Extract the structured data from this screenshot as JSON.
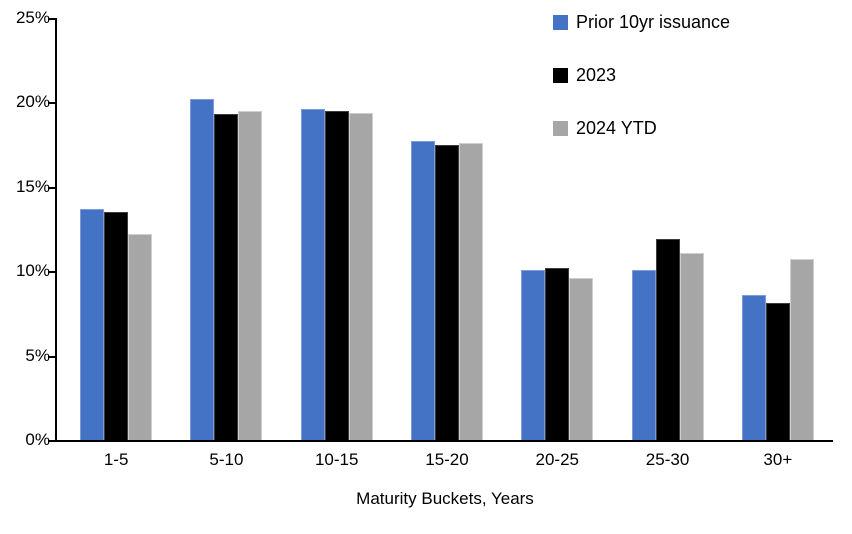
{
  "chart_data": {
    "type": "bar",
    "title": "",
    "categories": [
      "1-5",
      "5-10",
      "10-15",
      "15-20",
      "20-25",
      "25-30",
      "30+"
    ],
    "series": [
      {
        "name": "Prior 10yr issuance",
        "color": "#4472C4",
        "values": [
          13.7,
          20.2,
          19.6,
          17.7,
          10.1,
          10.1,
          8.6
        ]
      },
      {
        "name": "2023",
        "color": "#000000",
        "values": [
          13.5,
          19.3,
          19.5,
          17.5,
          10.2,
          11.9,
          8.1
        ]
      },
      {
        "name": "2024 YTD",
        "color": "#A6A6A6",
        "values": [
          12.2,
          19.5,
          19.4,
          17.6,
          9.6,
          11.1,
          10.7
        ]
      }
    ],
    "xlabel": "Maturity Buckets, Years",
    "ylabel": "",
    "ylim": [
      0,
      25
    ],
    "ytick_step": 5,
    "yticks": [
      {
        "value": 0,
        "label": "0%"
      },
      {
        "value": 5,
        "label": "5%"
      },
      {
        "value": 10,
        "label": "10%"
      },
      {
        "value": 15,
        "label": "15%"
      },
      {
        "value": 20,
        "label": "20%"
      },
      {
        "value": 25,
        "label": "25%"
      }
    ],
    "grid": false,
    "legend_position": "top-right",
    "axis_color": "#000000",
    "background_color": "#FFFFFF"
  }
}
